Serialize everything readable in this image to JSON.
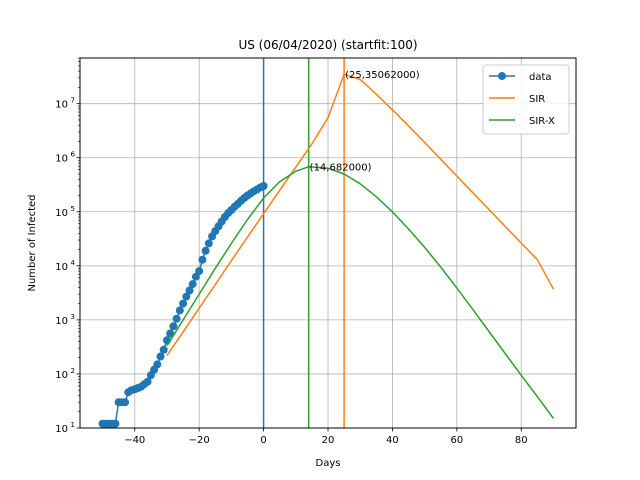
{
  "chart_data": {
    "type": "line",
    "title": "US (06/04/2020) (startfit:100)",
    "xlabel": "Days",
    "ylabel": "Number of Infected",
    "xlim": [
      -57,
      97
    ],
    "ylim": [
      10,
      70000000
    ],
    "yscale": "log",
    "grid": true,
    "legend_position": "top-right",
    "x_ticks": [
      -40,
      -20,
      0,
      20,
      40,
      60,
      80
    ],
    "x_tick_labels": [
      "−40",
      "−20",
      "0",
      "20",
      "40",
      "60",
      "80"
    ],
    "y_ticks": [
      10,
      100,
      1000,
      10000,
      100000,
      1000000,
      10000000
    ],
    "y_tick_labels": [
      {
        "base": "10",
        "exp": "1"
      },
      {
        "base": "10",
        "exp": "2"
      },
      {
        "base": "10",
        "exp": "3"
      },
      {
        "base": "10",
        "exp": "4"
      },
      {
        "base": "10",
        "exp": "5"
      },
      {
        "base": "10",
        "exp": "6"
      },
      {
        "base": "10",
        "exp": "7"
      }
    ],
    "series": [
      {
        "name": "data",
        "color": "#1f77b4",
        "marker": "circle",
        "x": [
          -50,
          -49,
          -48,
          -47,
          -46,
          -45,
          -44,
          -43,
          -42,
          -41,
          -40,
          -39,
          -38,
          -37,
          -36,
          -35,
          -34,
          -33,
          -32,
          -31,
          -30,
          -29,
          -28,
          -27,
          -26,
          -25,
          -24,
          -23,
          -22,
          -21,
          -20,
          -19,
          -18,
          -17,
          -16,
          -15,
          -14,
          -13,
          -12,
          -11,
          -10,
          -9,
          -8,
          -7,
          -6,
          -5,
          -4,
          -3,
          -2,
          -1,
          0
        ],
        "y": [
          12,
          12,
          12,
          12,
          12,
          30,
          30,
          30,
          46,
          50,
          52,
          55,
          58,
          65,
          72,
          95,
          120,
          150,
          210,
          280,
          420,
          560,
          760,
          1050,
          1500,
          2000,
          2700,
          3500,
          4600,
          6300,
          8000,
          13000,
          19000,
          26000,
          35000,
          44000,
          54000,
          66000,
          80000,
          95000,
          108000,
          124000,
          140000,
          160000,
          180000,
          200000,
          220000,
          240000,
          260000,
          282000,
          300000
        ]
      },
      {
        "name": "SIR",
        "color": "#ff7f0e",
        "x": [
          -30,
          -25,
          -20,
          -15,
          -10,
          -5,
          0,
          5,
          10,
          15,
          20,
          25,
          30,
          35,
          40,
          45,
          50,
          55,
          60,
          65,
          70,
          75,
          80,
          85,
          90
        ],
        "y": [
          220,
          600,
          1650,
          4500,
          12500,
          34000,
          92000,
          250000,
          670000,
          1800000,
          5500000,
          35062000,
          28000000,
          15000000,
          7700000,
          3900000,
          1920000,
          940000,
          460000,
          225000,
          110000,
          54000,
          26500,
          13000,
          3700
        ]
      },
      {
        "name": "SIR-X",
        "color": "#2ca02c",
        "x": [
          -30,
          -25,
          -20,
          -15,
          -10,
          -5,
          0,
          5,
          10,
          14,
          20,
          25,
          30,
          35,
          40,
          45,
          50,
          55,
          60,
          65,
          70,
          75,
          80,
          85,
          90
        ],
        "y": [
          330,
          1000,
          3000,
          9000,
          26000,
          72000,
          180000,
          360000,
          560000,
          682000,
          640000,
          500000,
          330000,
          190000,
          100000,
          48000,
          22000,
          9500,
          3900,
          1550,
          610,
          240,
          95,
          38,
          15
        ]
      }
    ],
    "vlines": [
      {
        "x": 0,
        "color": "#1f77b4"
      },
      {
        "x": 14,
        "color": "#2ca02c"
      },
      {
        "x": 25,
        "color": "#ff7f0e"
      }
    ],
    "annotations": [
      {
        "text": "(25,35062000)",
        "x": 25,
        "y": 35062000
      },
      {
        "text": "(14,682000)",
        "x": 14,
        "y": 682000
      }
    ]
  }
}
